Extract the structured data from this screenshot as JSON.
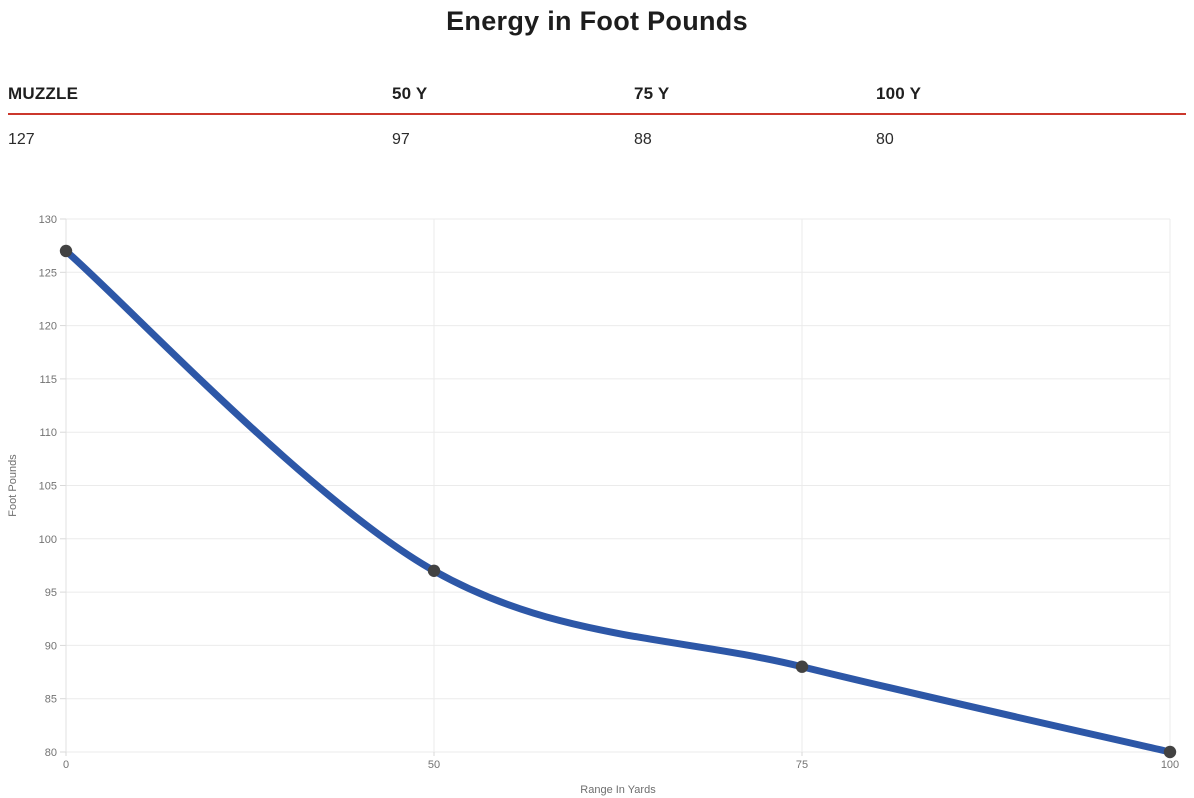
{
  "page": {
    "title": "Energy in Foot Pounds"
  },
  "stats_table": {
    "columns": [
      {
        "header": "MUZZLE",
        "value": "127"
      },
      {
        "header": "50 Y",
        "value": "97"
      },
      {
        "header": "75 Y",
        "value": "88"
      },
      {
        "header": "100 Y",
        "value": "80"
      }
    ],
    "divider_color": "#cb372c"
  },
  "chart_data": {
    "type": "line",
    "title": "Energy in Foot Pounds",
    "categories": [
      "0",
      "50",
      "75",
      "100"
    ],
    "values": [
      127,
      97,
      88,
      80
    ],
    "series": [
      {
        "name": "Energy",
        "values": [
          127,
          97,
          88,
          80
        ]
      }
    ],
    "xlabel": "Range In Yards",
    "ylabel": "Foot Pounds",
    "ylim": [
      80,
      130
    ],
    "y_ticks": [
      80,
      85,
      90,
      95,
      100,
      105,
      110,
      115,
      120,
      125,
      130
    ],
    "grid": true,
    "smooth": true,
    "legend": "none",
    "colors": {
      "line": "#2d57a7",
      "point": "#424242",
      "gridline": "#ebebeb",
      "axis_line": "#e0e0e0",
      "tick_mark": "#d9d9d9",
      "tick_label": "#737373",
      "axis_title": "#6e6e6e"
    }
  }
}
